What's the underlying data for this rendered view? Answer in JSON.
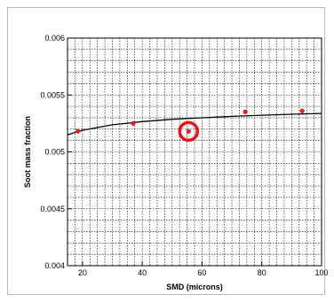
{
  "chart_data": {
    "type": "scatter",
    "title": "",
    "xlabel": "SMD (microns)",
    "ylabel": "Soot mass fraction",
    "xlim": [
      15,
      100
    ],
    "ylim": [
      0.004,
      0.006
    ],
    "x_ticks": [
      20,
      40,
      60,
      80,
      100
    ],
    "x_tick_labels": [
      "20",
      "40",
      "60",
      "80",
      "100"
    ],
    "y_ticks": [
      0.004,
      0.0045,
      0.005,
      0.0055,
      0.006
    ],
    "y_tick_labels": [
      "0.004",
      "0.0045",
      "0.005",
      "0.0055",
      "0.006"
    ],
    "grid": true,
    "series": [
      {
        "type": "scatter",
        "color": "#dd2020",
        "x": [
          18.5,
          37,
          55.5,
          74.5,
          93.5
        ],
        "y": [
          0.005182,
          0.00525,
          0.00518,
          0.005352,
          0.00536
        ]
      },
      {
        "type": "line",
        "color": "#000000",
        "x": [
          15,
          20,
          30,
          40,
          50,
          60,
          70,
          80,
          90,
          100
        ],
        "y": [
          0.00515,
          0.00519,
          0.005238,
          0.005266,
          0.005286,
          0.0053,
          0.005312,
          0.005322,
          0.005331,
          0.005338
        ]
      }
    ],
    "annotations": [
      {
        "type": "circle-highlight",
        "color": "#ee1111",
        "x": 55.5,
        "y": 0.00518
      }
    ]
  }
}
